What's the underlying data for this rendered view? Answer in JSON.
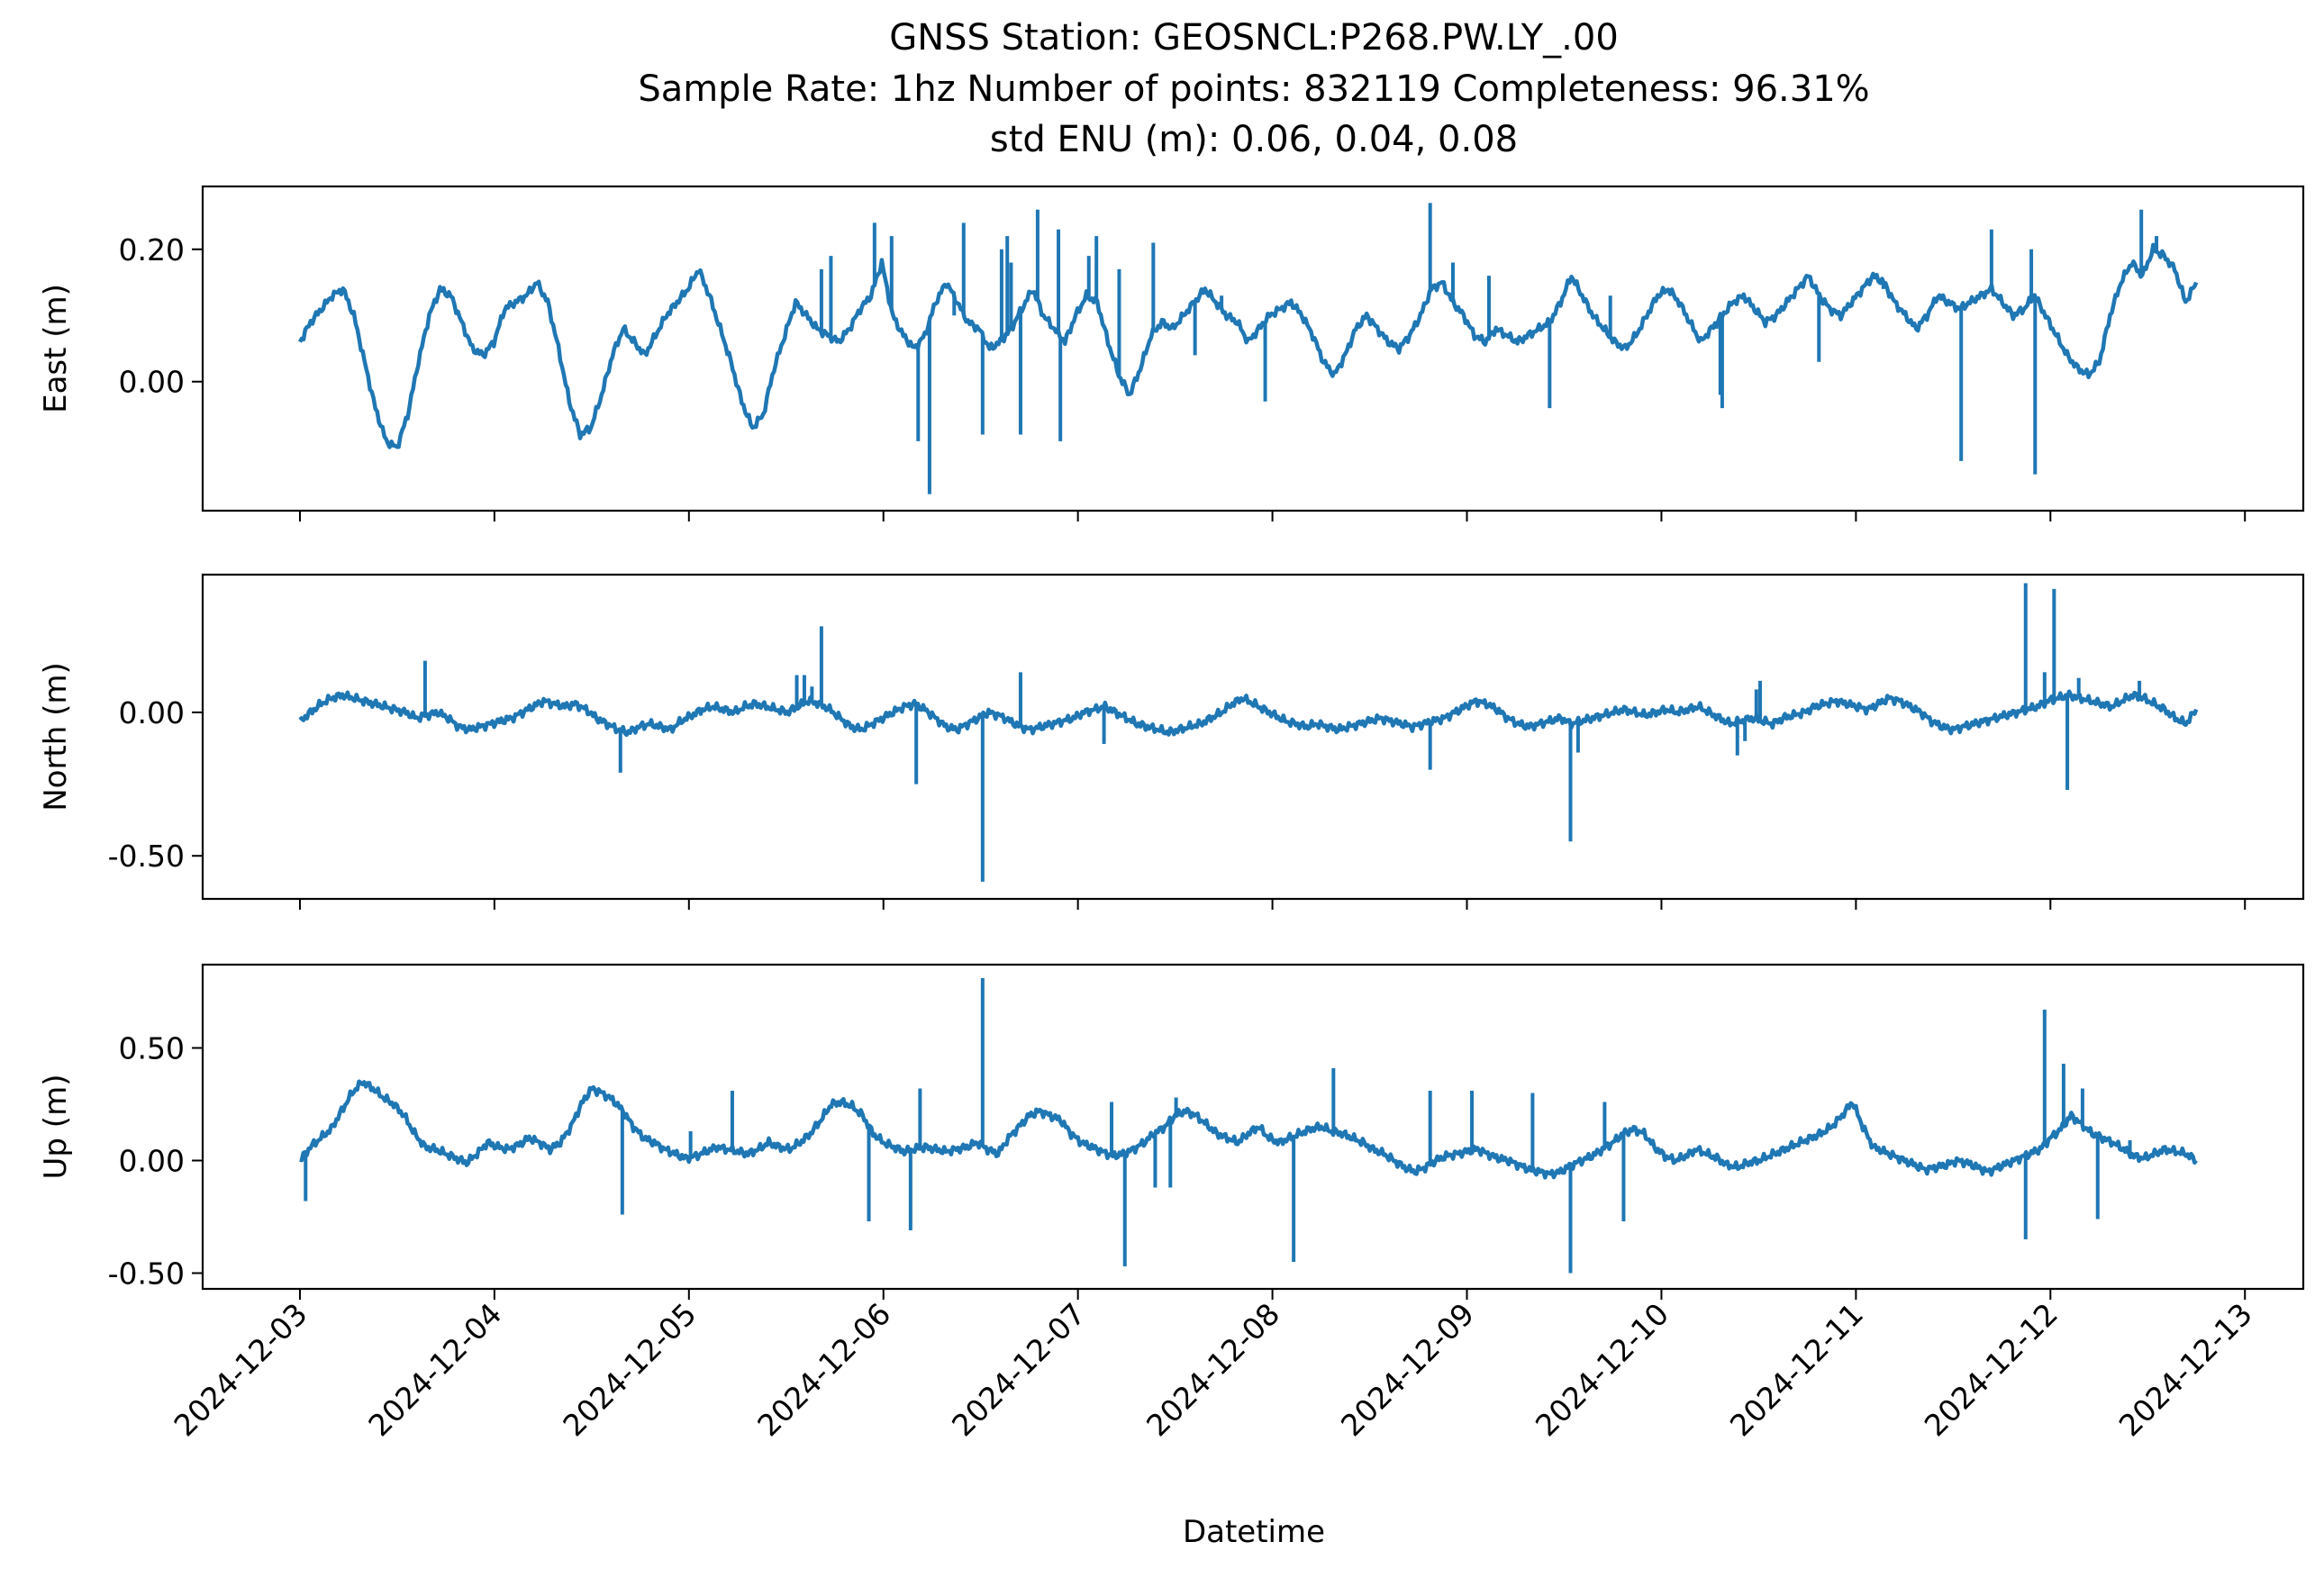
{
  "title": {
    "line1": "GNSS Station: GEOSNCL:P268.PW.LY_.00",
    "line2": "Sample Rate: 1hz   Number of points: 832119    Completeness:  96.31%",
    "line3": "std ENU (m):  0.06, 0.04, 0.08"
  },
  "chart_data": {
    "type": "line",
    "series_color": "#1f77b4",
    "xlabel": "Datetime",
    "x_ticks": [
      "2024-12-03",
      "2024-12-04",
      "2024-12-05",
      "2024-12-06",
      "2024-12-07",
      "2024-12-08",
      "2024-12-09",
      "2024-12-10",
      "2024-12-11",
      "2024-12-12",
      "2024-12-13"
    ],
    "x_start": "2024-12-03T00:00",
    "x_end": "2024-12-12T18:00",
    "xlim": [
      "2024-12-02T12:00",
      "2024-12-13T07:12"
    ],
    "grid": false,
    "panels": [
      {
        "ylabel": "East (m)",
        "ylim": [
          -0.195,
          0.295
        ],
        "yticks": [
          {
            "value": 0.2,
            "label": "0.20"
          },
          {
            "value": 0.0,
            "label": "0.00"
          }
        ],
        "values": [
          0.06,
          0.09,
          0.11,
          0.13,
          0.14,
          0.1,
          0.03,
          -0.04,
          -0.09,
          -0.1,
          -0.05,
          0.03,
          0.1,
          0.14,
          0.13,
          0.09,
          0.05,
          0.04,
          0.06,
          0.11,
          0.12,
          0.13,
          0.15,
          0.12,
          0.05,
          -0.03,
          -0.08,
          -0.07,
          -0.02,
          0.04,
          0.08,
          0.06,
          0.04,
          0.07,
          0.1,
          0.12,
          0.14,
          0.17,
          0.13,
          0.08,
          0.03,
          -0.03,
          -0.07,
          -0.05,
          0.02,
          0.07,
          0.12,
          0.1,
          0.08,
          0.07,
          0.06,
          0.08,
          0.11,
          0.13,
          0.18,
          0.1,
          0.07,
          0.05,
          0.07,
          0.12,
          0.15,
          0.12,
          0.09,
          0.08,
          0.05,
          0.06,
          0.08,
          0.11,
          0.14,
          0.1,
          0.08,
          0.06,
          0.1,
          0.13,
          0.12,
          0.06,
          0.01,
          -0.02,
          0.02,
          0.07,
          0.09,
          0.08,
          0.1,
          0.12,
          0.14,
          0.12,
          0.1,
          0.09,
          0.06,
          0.08,
          0.1,
          0.11,
          0.12,
          0.1,
          0.07,
          0.03,
          0.01,
          0.04,
          0.08,
          0.1,
          0.08,
          0.06,
          0.05,
          0.07,
          0.1,
          0.14,
          0.15,
          0.12,
          0.1,
          0.07,
          0.06,
          0.08,
          0.07,
          0.06,
          0.07,
          0.08,
          0.09,
          0.12,
          0.16,
          0.13,
          0.1,
          0.08,
          0.06,
          0.05,
          0.07,
          0.1,
          0.13,
          0.14,
          0.12,
          0.09,
          0.06,
          0.08,
          0.1,
          0.12,
          0.13,
          0.11,
          0.09,
          0.1,
          0.12,
          0.14,
          0.16,
          0.13,
          0.11,
          0.1,
          0.12,
          0.14,
          0.16,
          0.15,
          0.12,
          0.1,
          0.08,
          0.1,
          0.13,
          0.12,
          0.11,
          0.12,
          0.13,
          0.14,
          0.12,
          0.1,
          0.11,
          0.13,
          0.1,
          0.07,
          0.04,
          0.02,
          0.01,
          0.03,
          0.1,
          0.15,
          0.18,
          0.16,
          0.2,
          0.19,
          0.17,
          0.12,
          0.15
        ],
        "spikes": [
          [
            0.35,
            0.24
          ],
          [
            0.37,
            0.2
          ],
          [
            0.4,
            0.23
          ],
          [
            0.42,
            0.22
          ],
          [
            0.375,
            0.18
          ],
          [
            0.275,
            0.17
          ],
          [
            0.28,
            0.19
          ],
          [
            0.303,
            0.24
          ],
          [
            0.312,
            0.22
          ],
          [
            0.326,
            -0.09
          ],
          [
            0.332,
            -0.17
          ],
          [
            0.345,
            0.1
          ],
          [
            0.373,
            0.22
          ],
          [
            0.38,
            -0.08
          ],
          [
            0.389,
            0.26
          ],
          [
            0.36,
            -0.08
          ],
          [
            0.401,
            -0.09
          ],
          [
            0.416,
            0.19
          ],
          [
            0.432,
            0.17
          ],
          [
            0.45,
            0.21
          ],
          [
            0.472,
            0.04
          ],
          [
            0.486,
            0.13
          ],
          [
            0.509,
            -0.03
          ],
          [
            0.596,
            0.27
          ],
          [
            0.608,
            0.18
          ],
          [
            0.627,
            0.16
          ],
          [
            0.659,
            -0.04
          ],
          [
            0.691,
            0.13
          ],
          [
            0.749,
            -0.02
          ],
          [
            0.75,
            -0.04
          ],
          [
            0.747,
            0.08
          ],
          [
            0.801,
            0.03
          ],
          [
            0.835,
            0.14
          ],
          [
            0.876,
            -0.12
          ],
          [
            0.892,
            0.23
          ],
          [
            0.913,
            0.2
          ],
          [
            0.915,
            -0.14
          ],
          [
            0.935,
            0.03
          ],
          [
            0.971,
            0.26
          ],
          [
            0.979,
            0.22
          ]
        ]
      },
      {
        "ylabel": "North (m)",
        "ylim": [
          -0.65,
          0.48
        ],
        "yticks": [
          {
            "value": 0.0,
            "label": "0.00"
          },
          {
            "value": -0.5,
            "label": "-0.50"
          }
        ],
        "values": [
          -0.03,
          0.0,
          0.03,
          0.05,
          0.06,
          0.05,
          0.04,
          0.03,
          0.02,
          0.01,
          0.0,
          -0.02,
          -0.01,
          0.0,
          -0.02,
          -0.05,
          -0.06,
          -0.05,
          -0.04,
          -0.03,
          -0.02,
          0.0,
          0.02,
          0.04,
          0.03,
          0.02,
          0.03,
          0.01,
          -0.02,
          -0.04,
          -0.06,
          -0.07,
          -0.05,
          -0.04,
          -0.05,
          -0.06,
          -0.03,
          -0.01,
          0.01,
          0.02,
          0.01,
          0.0,
          0.02,
          0.03,
          0.02,
          0.01,
          0.0,
          0.02,
          0.04,
          0.03,
          0.01,
          -0.02,
          -0.05,
          -0.06,
          -0.04,
          -0.02,
          0.0,
          0.02,
          0.03,
          0.01,
          -0.02,
          -0.05,
          -0.06,
          -0.04,
          -0.02,
          0.0,
          -0.01,
          -0.03,
          -0.05,
          -0.06,
          -0.05,
          -0.04,
          -0.03,
          -0.02,
          0.0,
          0.01,
          0.02,
          0.0,
          -0.02,
          -0.04,
          -0.05,
          -0.06,
          -0.07,
          -0.06,
          -0.05,
          -0.04,
          -0.02,
          0.0,
          0.03,
          0.05,
          0.03,
          0.01,
          -0.01,
          -0.03,
          -0.04,
          -0.05,
          -0.04,
          -0.05,
          -0.06,
          -0.05,
          -0.04,
          -0.03,
          -0.02,
          -0.03,
          -0.04,
          -0.05,
          -0.04,
          -0.03,
          -0.02,
          0.0,
          0.02,
          0.04,
          0.03,
          0.01,
          -0.02,
          -0.04,
          -0.05,
          -0.04,
          -0.03,
          -0.02,
          -0.04,
          -0.03,
          -0.02,
          -0.01,
          0.0,
          0.01,
          0.0,
          -0.01,
          0.0,
          0.01,
          0.0,
          0.01,
          0.02,
          0.0,
          -0.02,
          -0.04,
          -0.03,
          -0.02,
          -0.03,
          -0.04,
          -0.02,
          -0.01,
          0.0,
          0.02,
          0.03,
          0.04,
          0.03,
          0.02,
          0.01,
          0.03,
          0.05,
          0.04,
          0.02,
          0.0,
          -0.03,
          -0.05,
          -0.06,
          -0.05,
          -0.04,
          -0.03,
          -0.02,
          -0.01,
          0.0,
          0.01,
          0.02,
          0.04,
          0.05,
          0.06,
          0.05,
          0.04,
          0.03,
          0.02,
          0.04,
          0.06,
          0.05,
          0.03,
          0.01,
          -0.02,
          -0.04,
          0.01
        ],
        "spikes": [
          [
            0.066,
            0.18
          ],
          [
            0.169,
            -0.21
          ],
          [
            0.262,
            0.13
          ],
          [
            0.266,
            0.13
          ],
          [
            0.27,
            0.09
          ],
          [
            0.275,
            0.3
          ],
          [
            0.325,
            -0.25
          ],
          [
            0.36,
            -0.59
          ],
          [
            0.38,
            0.14
          ],
          [
            0.424,
            -0.11
          ],
          [
            0.596,
            -0.2
          ],
          [
            0.67,
            -0.45
          ],
          [
            0.674,
            -0.14
          ],
          [
            0.768,
            0.08
          ],
          [
            0.762,
            -0.1
          ],
          [
            0.77,
            0.11
          ],
          [
            0.758,
            -0.15
          ],
          [
            0.91,
            0.45
          ],
          [
            0.92,
            0.14
          ],
          [
            0.925,
            0.43
          ],
          [
            0.932,
            -0.27
          ],
          [
            0.938,
            0.12
          ],
          [
            0.97,
            0.11
          ]
        ]
      },
      {
        "ylabel": "Up (m)",
        "ylim": [
          -0.57,
          0.87
        ],
        "yticks": [
          {
            "value": 0.5,
            "label": "0.50"
          },
          {
            "value": 0.0,
            "label": "0.00"
          },
          {
            "value": -0.5,
            "label": "-0.50"
          }
        ],
        "values": [
          0.0,
          0.06,
          0.1,
          0.14,
          0.22,
          0.3,
          0.35,
          0.32,
          0.28,
          0.25,
          0.2,
          0.12,
          0.06,
          0.05,
          0.03,
          0.01,
          -0.01,
          0.03,
          0.08,
          0.06,
          0.05,
          0.07,
          0.1,
          0.08,
          0.05,
          0.08,
          0.15,
          0.25,
          0.32,
          0.3,
          0.27,
          0.22,
          0.15,
          0.1,
          0.08,
          0.05,
          0.03,
          0.01,
          0.02,
          0.04,
          0.06,
          0.05,
          0.04,
          0.03,
          0.05,
          0.08,
          0.06,
          0.05,
          0.08,
          0.12,
          0.18,
          0.25,
          0.26,
          0.24,
          0.2,
          0.12,
          0.08,
          0.06,
          0.04,
          0.05,
          0.06,
          0.05,
          0.04,
          0.05,
          0.06,
          0.08,
          0.05,
          0.03,
          0.1,
          0.15,
          0.2,
          0.22,
          0.2,
          0.18,
          0.12,
          0.08,
          0.06,
          0.04,
          0.02,
          0.03,
          0.05,
          0.08,
          0.12,
          0.15,
          0.2,
          0.22,
          0.2,
          0.16,
          0.12,
          0.1,
          0.08,
          0.12,
          0.15,
          0.1,
          0.08,
          0.1,
          0.12,
          0.14,
          0.15,
          0.13,
          0.12,
          0.1,
          0.08,
          0.05,
          0.03,
          0.0,
          -0.03,
          -0.05,
          -0.03,
          0.0,
          0.02,
          0.03,
          0.04,
          0.05,
          0.03,
          0.01,
          0.0,
          -0.02,
          -0.04,
          -0.05,
          -0.06,
          -0.05,
          -0.02,
          0.0,
          0.02,
          0.05,
          0.08,
          0.12,
          0.14,
          0.12,
          0.06,
          0.02,
          0.0,
          0.02,
          0.05,
          0.03,
          0.01,
          -0.02,
          -0.03,
          -0.01,
          0.0,
          0.02,
          0.04,
          0.06,
          0.08,
          0.1,
          0.12,
          0.15,
          0.2,
          0.26,
          0.15,
          0.06,
          0.04,
          0.02,
          0.0,
          -0.02,
          -0.04,
          -0.03,
          -0.02,
          0.0,
          -0.01,
          -0.03,
          -0.05,
          -0.03,
          -0.01,
          0.01,
          0.03,
          0.05,
          0.1,
          0.14,
          0.2,
          0.16,
          0.12,
          0.1,
          0.08,
          0.05,
          0.02,
          0.01,
          0.03,
          0.05,
          0.04,
          0.03,
          0.0
        ],
        "spikes": [
          [
            0.003,
            -0.18
          ],
          [
            0.17,
            -0.24
          ],
          [
            0.206,
            0.13
          ],
          [
            0.228,
            0.31
          ],
          [
            0.3,
            -0.27
          ],
          [
            0.322,
            -0.31
          ],
          [
            0.327,
            0.32
          ],
          [
            0.36,
            0.81
          ],
          [
            0.428,
            0.26
          ],
          [
            0.435,
            -0.47
          ],
          [
            0.451,
            -0.12
          ],
          [
            0.459,
            -0.12
          ],
          [
            0.462,
            0.28
          ],
          [
            0.524,
            -0.45
          ],
          [
            0.545,
            0.41
          ],
          [
            0.596,
            0.31
          ],
          [
            0.618,
            0.31
          ],
          [
            0.65,
            0.3
          ],
          [
            0.67,
            -0.5
          ],
          [
            0.688,
            0.26
          ],
          [
            0.698,
            -0.27
          ],
          [
            0.91,
            -0.35
          ],
          [
            0.92,
            0.67
          ],
          [
            0.93,
            0.43
          ],
          [
            0.94,
            0.32
          ],
          [
            0.948,
            -0.26
          ],
          [
            0.965,
            0.09
          ]
        ]
      }
    ]
  }
}
